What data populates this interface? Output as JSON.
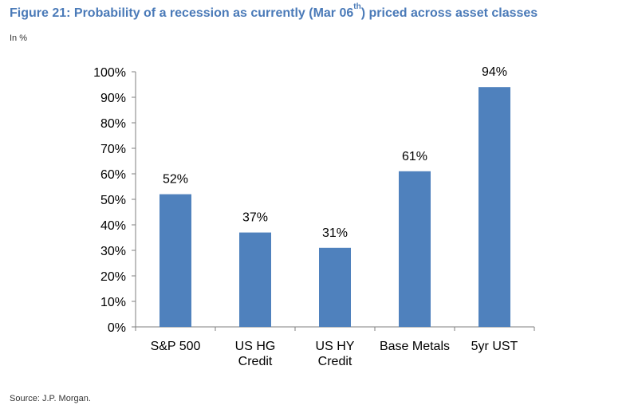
{
  "figure": {
    "title_main": "Figure 21: Probability of a recession as currently (Mar 06",
    "title_sup": "th",
    "title_end": ") priced across asset classes",
    "subtitle": "In %",
    "source": "Source: J.P. Morgan."
  },
  "chart_data": {
    "type": "bar",
    "categories": [
      [
        "S&P 500"
      ],
      [
        "US HG",
        "Credit"
      ],
      [
        "US HY",
        "Credit"
      ],
      [
        "Base Metals"
      ],
      [
        "5yr UST"
      ]
    ],
    "values": [
      52,
      37,
      31,
      61,
      94
    ],
    "data_labels": [
      "52%",
      "37%",
      "31%",
      "61%",
      "94%"
    ],
    "ylim": [
      0,
      100
    ],
    "ytick_step": 10,
    "ytick_labels": [
      "0%",
      "10%",
      "20%",
      "30%",
      "40%",
      "50%",
      "60%",
      "70%",
      "80%",
      "90%",
      "100%"
    ],
    "grid": false,
    "legend": "none",
    "bar_color": "#4f81bd",
    "axis_color": "#7f7f7f"
  }
}
